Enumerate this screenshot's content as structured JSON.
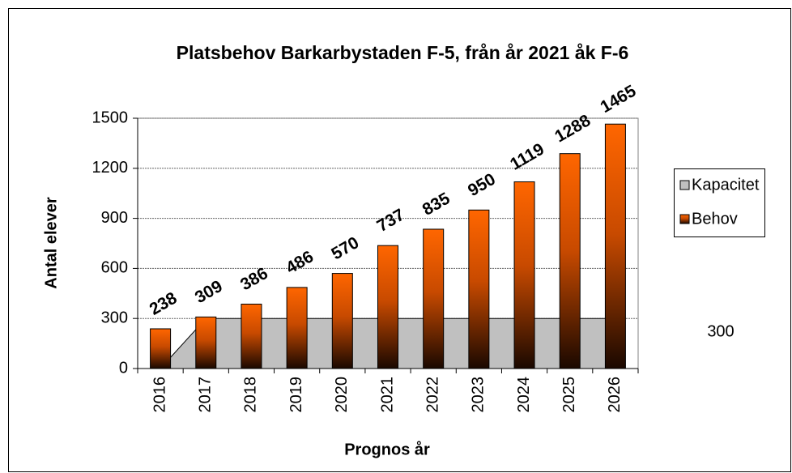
{
  "chart_data": {
    "type": "bar",
    "title": "Platsbehov Barkarbystaden F-5, från år 2021 åk F-6",
    "x_label": "Prognos år",
    "y_label": "Antal elever",
    "categories": [
      "2016",
      "2017",
      "2018",
      "2019",
      "2020",
      "2021",
      "2022",
      "2023",
      "2024",
      "2025",
      "2026"
    ],
    "series": [
      {
        "name": "Kapacitet",
        "color": "#c0c0c0",
        "type": "area",
        "values": [
          0,
          300,
          300,
          300,
          300,
          300,
          300,
          300,
          300,
          300,
          300
        ]
      },
      {
        "name": "Behov",
        "color": "#ff6600",
        "type": "bar",
        "values": [
          238,
          309,
          386,
          486,
          570,
          737,
          835,
          950,
          1119,
          1288,
          1465
        ]
      }
    ],
    "ylim": [
      0,
      1500
    ],
    "yticks": [
      0,
      300,
      600,
      900,
      1200,
      1500
    ],
    "grid": true,
    "legend": "right",
    "annotations": [
      "300"
    ]
  }
}
